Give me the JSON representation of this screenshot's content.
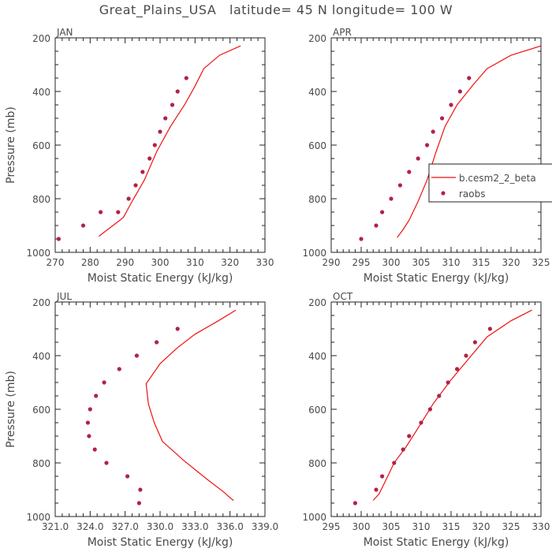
{
  "title": "Great_Plains_USA   latitude= 45 N longitude= 100 W",
  "colors": {
    "model": "#ee1111",
    "obs": "#b0224a",
    "axis": "#222222",
    "text": "#4a4a4a"
  },
  "chart_data": [
    {
      "type": "line",
      "panel_label": "JAN",
      "xlabel": "Moist Static Energy (kJ/kg)",
      "ylabel": "Pressure (mb)",
      "xlim": [
        270,
        330
      ],
      "ylim": [
        1000,
        200
      ],
      "xticks": [
        270,
        280,
        290,
        300,
        310,
        320,
        330
      ],
      "xtick_labels": [
        "270",
        "280",
        "290",
        "300",
        "310",
        "320",
        "330"
      ],
      "yticks": [
        200,
        400,
        600,
        800,
        1000
      ],
      "show_legend": false,
      "series": [
        {
          "name": "b.cesm2_2_beta",
          "kind": "line",
          "x": [
            323,
            317,
            312.5,
            310,
            307,
            303,
            299,
            295.5,
            292,
            289.5,
            286.5,
            282.5
          ],
          "y": [
            230,
            265,
            315,
            380,
            450,
            530,
            625,
            730,
            810,
            870,
            900,
            940
          ]
        },
        {
          "name": "raobs",
          "kind": "points",
          "x": [
            307.5,
            305,
            303.5,
            301.5,
            300,
            298.5,
            297,
            295,
            293,
            291,
            288,
            283,
            278,
            271
          ],
          "y": [
            350,
            400,
            450,
            500,
            550,
            600,
            650,
            700,
            750,
            800,
            850,
            850,
            900,
            950
          ]
        }
      ]
    },
    {
      "type": "line",
      "panel_label": "APR",
      "xlabel": "Moist Static Energy (kJ/kg)",
      "ylabel": "",
      "xlim": [
        290,
        325
      ],
      "ylim": [
        1000,
        200
      ],
      "xticks": [
        290,
        295,
        300,
        305,
        310,
        315,
        320,
        325
      ],
      "xtick_labels": [
        "290",
        "295",
        "300",
        "305",
        "310",
        "315",
        "320",
        "325"
      ],
      "yticks": [
        200,
        400,
        600,
        800,
        1000
      ],
      "show_legend": true,
      "legend_position": "right",
      "series": [
        {
          "name": "b.cesm2_2_beta",
          "kind": "line",
          "x": [
            325,
            320,
            316,
            313.5,
            311,
            309,
            307.5,
            306,
            304.5,
            303,
            302,
            301
          ],
          "y": [
            230,
            265,
            315,
            380,
            450,
            530,
            625,
            730,
            810,
            880,
            915,
            945
          ]
        },
        {
          "name": "raobs",
          "kind": "points",
          "x": [
            313,
            311.5,
            310,
            308.5,
            307,
            306,
            304.5,
            303,
            301.5,
            300,
            298.5,
            297.5,
            295
          ],
          "y": [
            350,
            400,
            450,
            500,
            550,
            600,
            650,
            700,
            750,
            800,
            850,
            900,
            950
          ]
        }
      ],
      "legend": [
        {
          "label": "b.cesm2_2_beta",
          "kind": "line"
        },
        {
          "label": "raobs",
          "kind": "points"
        }
      ]
    },
    {
      "type": "line",
      "panel_label": "JUL",
      "xlabel": "Moist Static Energy (kJ/kg)",
      "ylabel": "Pressure (mb)",
      "xlim": [
        321,
        339
      ],
      "ylim": [
        1000,
        200
      ],
      "xticks": [
        321,
        324,
        327,
        330,
        333,
        336,
        339
      ],
      "xtick_labels": [
        "321.0",
        "324.0",
        "327.0",
        "330.0",
        "333.0",
        "336.0",
        "339.0"
      ],
      "yticks": [
        200,
        400,
        600,
        800,
        1000
      ],
      "show_legend": false,
      "series": [
        {
          "name": "b.cesm2_2_beta",
          "kind": "line",
          "x": [
            336.5,
            335,
            333,
            331.5,
            330,
            328.8,
            329,
            329.5,
            330.2,
            332,
            334,
            335.5,
            336,
            336.3
          ],
          "y": [
            230,
            270,
            320,
            370,
            430,
            505,
            580,
            650,
            720,
            790,
            860,
            910,
            930,
            940
          ]
        },
        {
          "name": "raobs",
          "kind": "points",
          "x": [
            331.5,
            329.7,
            328,
            326.5,
            325.2,
            324.5,
            324,
            323.8,
            323.9,
            324.4,
            325.4,
            327.2,
            328.3,
            328.2
          ],
          "y": [
            300,
            350,
            400,
            450,
            500,
            550,
            600,
            650,
            700,
            750,
            800,
            850,
            900,
            950
          ]
        }
      ]
    },
    {
      "type": "line",
      "panel_label": "OCT",
      "xlabel": "Moist Static Energy (kJ/kg)",
      "ylabel": "",
      "xlim": [
        295,
        330
      ],
      "ylim": [
        1000,
        200
      ],
      "xticks": [
        295,
        300,
        305,
        310,
        315,
        320,
        325,
        330
      ],
      "xtick_labels": [
        "295",
        "300",
        "305",
        "310",
        "315",
        "320",
        "325",
        "330"
      ],
      "yticks": [
        200,
        400,
        600,
        800,
        1000
      ],
      "show_legend": false,
      "series": [
        {
          "name": "b.cesm2_2_beta",
          "kind": "line",
          "x": [
            328.5,
            325,
            321,
            318,
            315,
            312,
            309.5,
            307.5,
            305.5,
            304,
            303,
            302
          ],
          "y": [
            230,
            270,
            330,
            410,
            490,
            580,
            670,
            740,
            800,
            870,
            915,
            940
          ]
        },
        {
          "name": "raobs",
          "kind": "points",
          "x": [
            321.5,
            319,
            317.5,
            316,
            314.5,
            313,
            311.5,
            310,
            308,
            307,
            305.5,
            303.5,
            302.5,
            299
          ],
          "y": [
            300,
            350,
            400,
            450,
            500,
            550,
            600,
            650,
            700,
            750,
            800,
            850,
            900,
            950
          ]
        }
      ]
    }
  ]
}
